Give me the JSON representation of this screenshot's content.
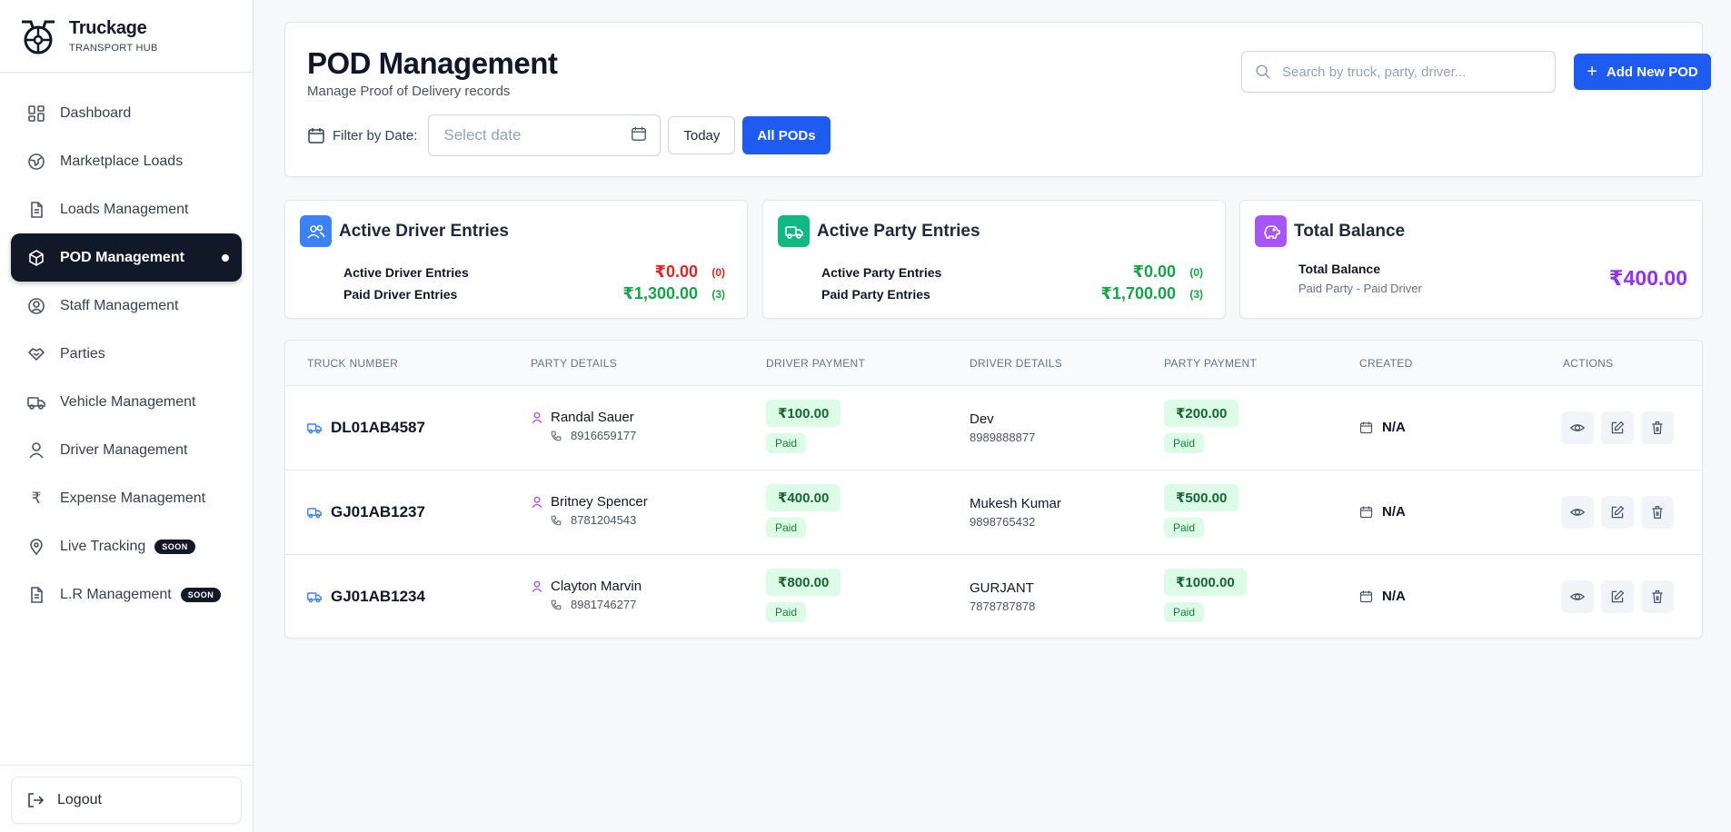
{
  "brand": {
    "name": "Truckage",
    "subtitle": "TRANSPORT HUB"
  },
  "sidebar": {
    "items": [
      {
        "label": "Dashboard",
        "icon": "dashboard-icon"
      },
      {
        "label": "Marketplace Loads",
        "icon": "globe-icon"
      },
      {
        "label": "Loads Management",
        "icon": "document-icon"
      },
      {
        "label": "POD Management",
        "icon": "box-icon",
        "active": true
      },
      {
        "label": "Staff Management",
        "icon": "user-circle-icon"
      },
      {
        "label": "Parties",
        "icon": "handshake-icon"
      },
      {
        "label": "Vehicle Management",
        "icon": "truck-icon"
      },
      {
        "label": "Driver Management",
        "icon": "user-icon"
      },
      {
        "label": "Expense Management",
        "icon": "rupee-icon"
      },
      {
        "label": "Live Tracking",
        "icon": "map-pin-icon",
        "badge": "SOON"
      },
      {
        "label": "L.R Management",
        "icon": "document-icon",
        "badge": "SOON"
      }
    ],
    "logout_label": "Logout"
  },
  "header": {
    "title": "POD Management",
    "subtitle": "Manage Proof of Delivery records",
    "filter_label": "Filter by Date:",
    "date_placeholder": "Select date",
    "today_label": "Today",
    "all_pods_label": "All PODs",
    "search_placeholder": "Search by truck, party, driver...",
    "add_label": "Add New POD"
  },
  "summary": {
    "driver": {
      "title": "Active Driver Entries",
      "active_label": "Active Driver Entries",
      "active_amount": "₹0.00",
      "active_count": "(0)",
      "paid_label": "Paid Driver Entries",
      "paid_amount": "₹1,300.00",
      "paid_count": "(3)"
    },
    "party": {
      "title": "Active Party Entries",
      "active_label": "Active Party Entries",
      "active_amount": "₹0.00",
      "active_count": "(0)",
      "paid_label": "Paid Party Entries",
      "paid_amount": "₹1,700.00",
      "paid_count": "(3)"
    },
    "balance": {
      "title": "Total Balance",
      "label": "Total Balance",
      "sublabel": "Paid Party - Paid Driver",
      "amount": "₹400.00"
    }
  },
  "table": {
    "headers": [
      "TRUCK NUMBER",
      "PARTY DETAILS",
      "DRIVER PAYMENT",
      "DRIVER DETAILS",
      "PARTY PAYMENT",
      "CREATED",
      "ACTIONS"
    ],
    "rows": [
      {
        "truck": "DL01AB4587",
        "party_name": "Randal Sauer",
        "party_phone": "8916659177",
        "driver_payment": "₹100.00",
        "driver_status": "Paid",
        "driver_name": "Dev",
        "driver_phone": "8989888877",
        "party_payment": "₹200.00",
        "party_status": "Paid",
        "created": "N/A"
      },
      {
        "truck": "GJ01AB1237",
        "party_name": "Britney Spencer",
        "party_phone": "8781204543",
        "driver_payment": "₹400.00",
        "driver_status": "Paid",
        "driver_name": "Mukesh Kumar",
        "driver_phone": "9898765432",
        "party_payment": "₹500.00",
        "party_status": "Paid",
        "created": "N/A"
      },
      {
        "truck": "GJ01AB1234",
        "party_name": "Clayton Marvin",
        "party_phone": "8981746277",
        "driver_payment": "₹800.00",
        "driver_status": "Paid",
        "driver_name": "GURJANT",
        "driver_phone": "7878787878",
        "party_payment": "₹1000.00",
        "party_status": "Paid",
        "created": "N/A"
      }
    ]
  },
  "colors": {
    "accent": "#1e5bf0",
    "active_nav": "#111827",
    "green": "#16a34a",
    "red": "#dc2626",
    "purple": "#9333ea"
  }
}
